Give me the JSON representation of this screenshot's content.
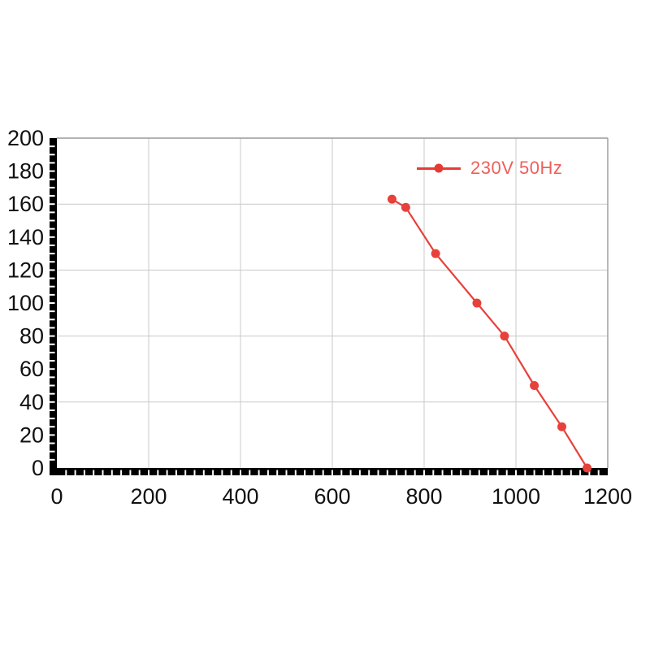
{
  "page": {
    "background": "#ffffff"
  },
  "chart_data": {
    "type": "line",
    "title": "",
    "xlabel": "",
    "ylabel": "",
    "xlim": [
      0,
      1200
    ],
    "ylim": [
      0,
      200
    ],
    "x_ticks": [
      0,
      200,
      400,
      600,
      800,
      1000,
      1200
    ],
    "y_ticks": [
      0,
      20,
      40,
      60,
      80,
      100,
      120,
      140,
      160,
      180,
      200
    ],
    "x_grid": [
      200,
      400,
      600,
      800,
      1000
    ],
    "y_grid": [
      40,
      80,
      120,
      160
    ],
    "x_minor_step": 20,
    "y_minor_step": 5,
    "grid_on": true,
    "grid_color": "#c9c9c9",
    "axis_color": "#000000",
    "frame_color": "#9a9a9a",
    "tick_label_color": "#111111",
    "legend": {
      "label": "230V 50Hz",
      "position": "top-right-inside",
      "text_color": "#ef5f5a",
      "line_color": "#e63b35"
    },
    "series": [
      {
        "name": "230V 50Hz",
        "color": "#e6413a",
        "marker": "circle",
        "points": [
          [
            730,
            163
          ],
          [
            760,
            158
          ],
          [
            825,
            130
          ],
          [
            915,
            100
          ],
          [
            975,
            80
          ],
          [
            1040,
            50
          ],
          [
            1100,
            25
          ],
          [
            1155,
            0
          ]
        ]
      }
    ]
  }
}
